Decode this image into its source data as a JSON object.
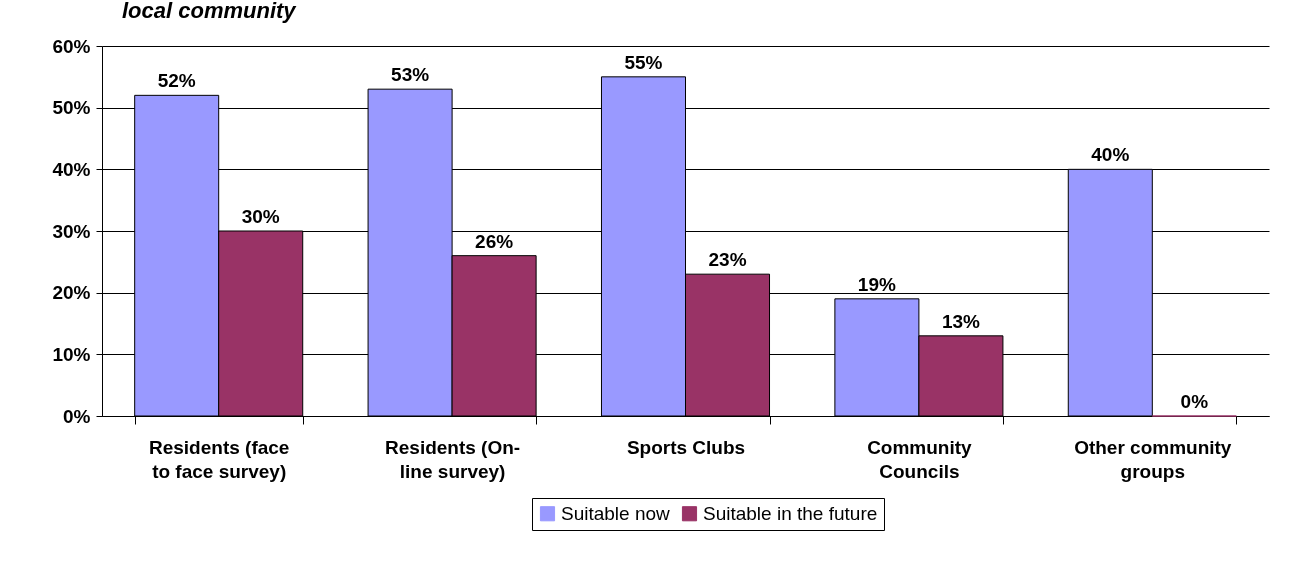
{
  "chart_data": {
    "type": "bar",
    "title": "local community",
    "categories": [
      "Residents (face to face survey)",
      "Residents (On-line survey)",
      "Sports Clubs",
      "Community Councils",
      "Other community groups"
    ],
    "series": [
      {
        "name": "Suitable now",
        "color": "#9999ff",
        "values": [
          52,
          53,
          55,
          19,
          40
        ],
        "value_labels": [
          "52%",
          "53%",
          "55%",
          "19%",
          "40%"
        ]
      },
      {
        "name": "Suitable in the future",
        "color": "#993366",
        "values": [
          30,
          26,
          23,
          13,
          0
        ],
        "value_labels": [
          "30%",
          "26%",
          "23%",
          "13%",
          "0%"
        ]
      }
    ],
    "ylim": [
      0,
      60
    ],
    "yticks": [
      {
        "value": 0,
        "label": "0%"
      },
      {
        "value": 10,
        "label": "10%"
      },
      {
        "value": 20,
        "label": "20%"
      },
      {
        "value": 30,
        "label": "30%"
      },
      {
        "value": 40,
        "label": "40%"
      },
      {
        "value": 50,
        "label": "50%"
      },
      {
        "value": 60,
        "label": "60%"
      }
    ],
    "grid": "y",
    "legend": "bottom"
  }
}
